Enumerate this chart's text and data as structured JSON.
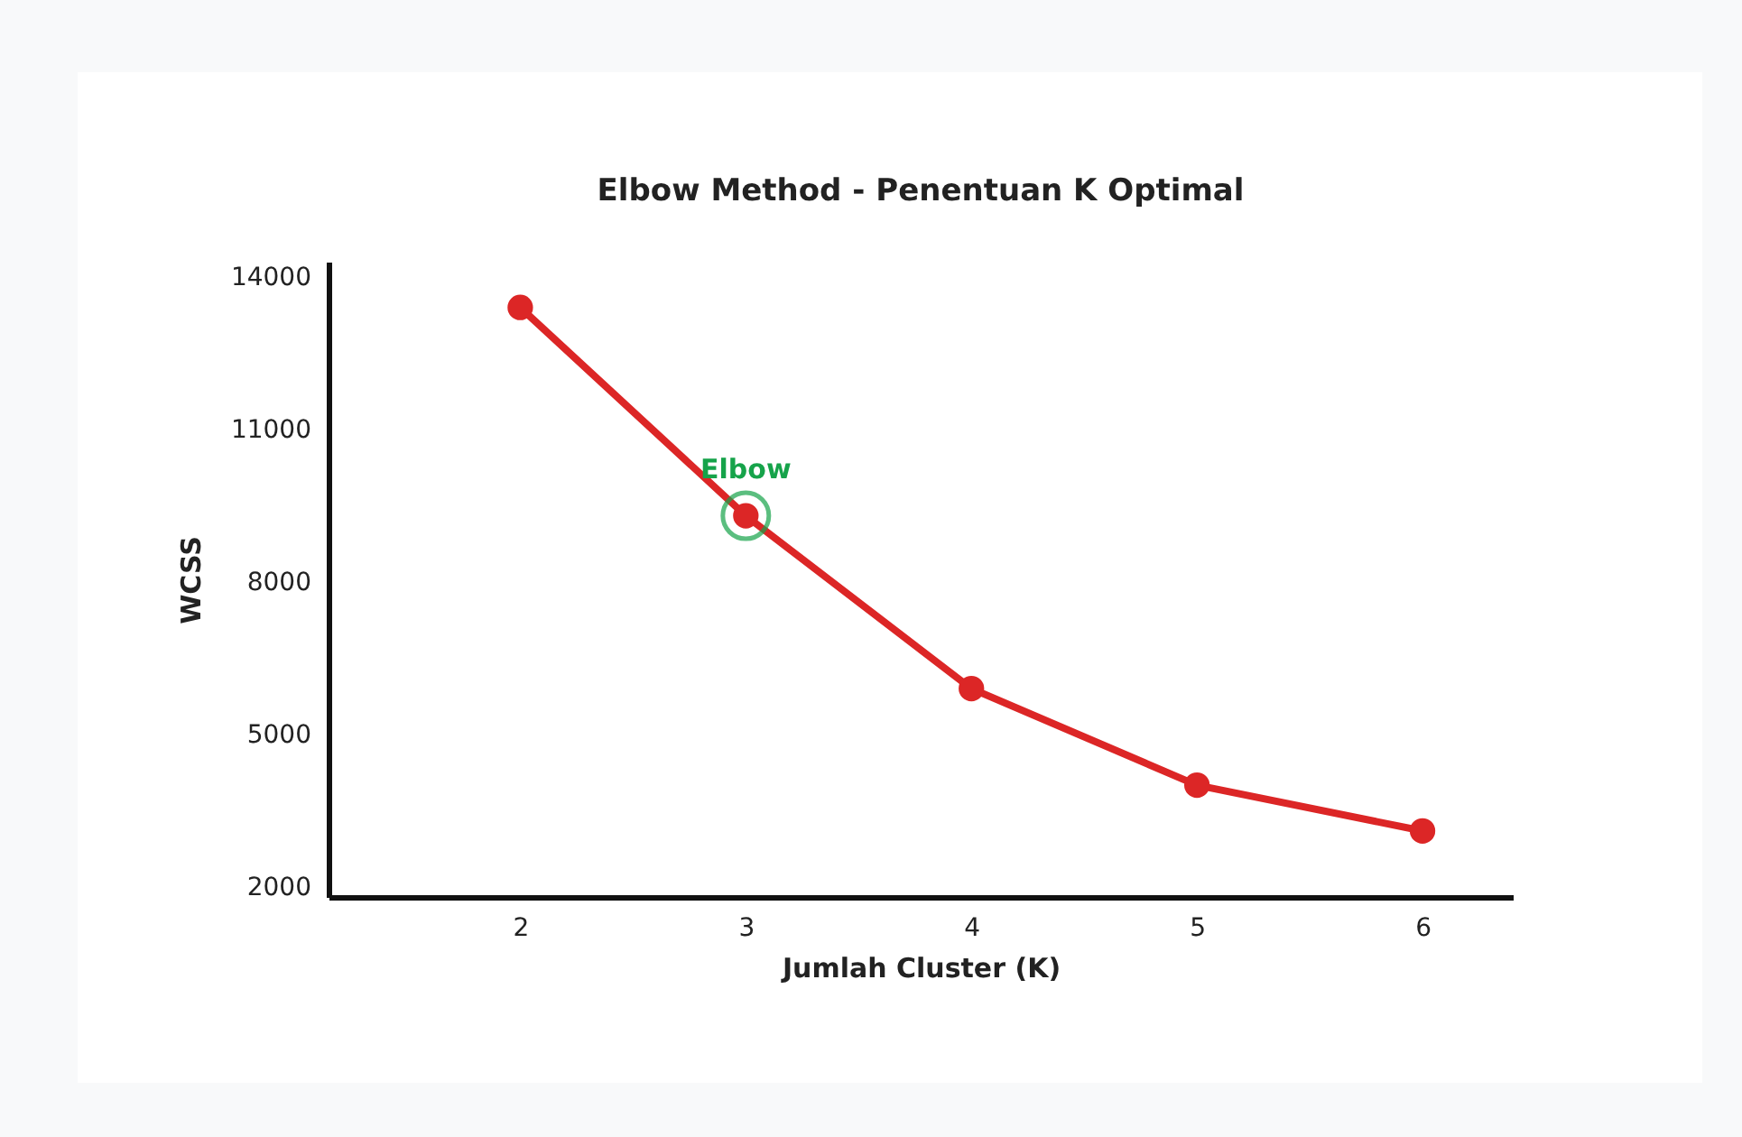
{
  "chart_data": {
    "type": "line",
    "title": "Elbow Method - Penentuan K Optimal",
    "xlabel": "Jumlah Cluster (K)",
    "ylabel": "WCSS",
    "x": [
      2,
      3,
      4,
      5,
      6
    ],
    "series": [
      {
        "color": "#dc2626",
        "values": [
          13400,
          9300,
          5900,
          4000,
          3100
        ]
      }
    ],
    "xlim": [
      1.15,
      6.4
    ],
    "xticks": [
      2,
      3,
      4,
      5,
      6
    ],
    "ylim": [
      1800,
      14300
    ],
    "yticks": [
      2000,
      5000,
      8000,
      11000,
      14000
    ],
    "marker": "circle",
    "grid": false,
    "annotations": [
      {
        "text": "Elbow",
        "x": 3,
        "y": 9300
      }
    ]
  }
}
